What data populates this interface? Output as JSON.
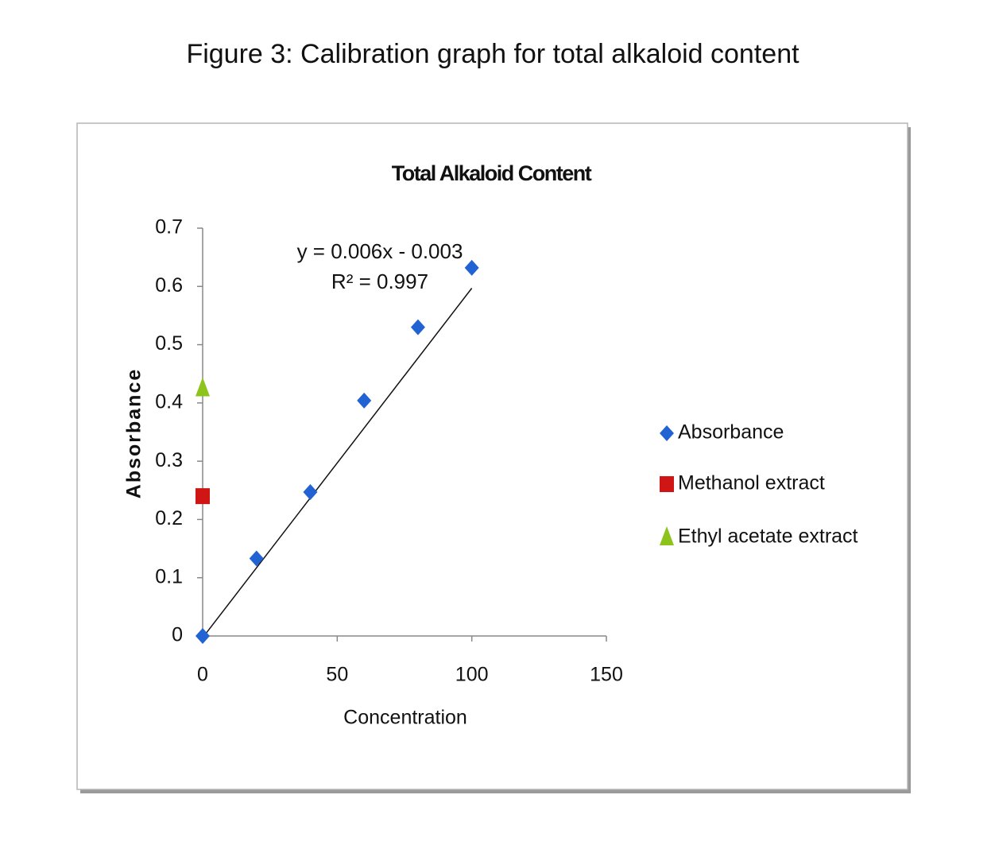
{
  "caption": "Figure 3: Calibration graph for total alkaloid content",
  "chart_data": {
    "type": "scatter",
    "title": "Total Alkaloid Content",
    "x_label": "Concentration",
    "y_label": "Absorbance",
    "xlim": [
      0,
      150
    ],
    "xticks": [
      0,
      50,
      100,
      150
    ],
    "ylim": [
      0,
      0.7
    ],
    "yticks": [
      0,
      0.1,
      0.2,
      0.3,
      0.4,
      0.5,
      0.6,
      0.7
    ],
    "grid": false,
    "legend": "right",
    "series": [
      {
        "name": "Absorbance",
        "color": "#2263d3",
        "marker": "diamond",
        "x": [
          0,
          20,
          40,
          60,
          80,
          100
        ],
        "values": [
          0,
          0.133,
          0.247,
          0.404,
          0.53,
          0.632
        ]
      },
      {
        "name": "Methanol extract",
        "color": "#d01515",
        "marker": "square",
        "x": [
          0
        ],
        "values": [
          0.24
        ]
      },
      {
        "name": "Ethyl acetate extract",
        "color": "#8cc41c",
        "marker": "triangle",
        "x": [
          0
        ],
        "values": [
          0.425
        ]
      }
    ],
    "trendline": {
      "series": 0,
      "slope": 0.006,
      "intercept": -0.003,
      "equation": "y = 0.006x - 0.003",
      "r_squared": "R² = 0.997"
    }
  }
}
